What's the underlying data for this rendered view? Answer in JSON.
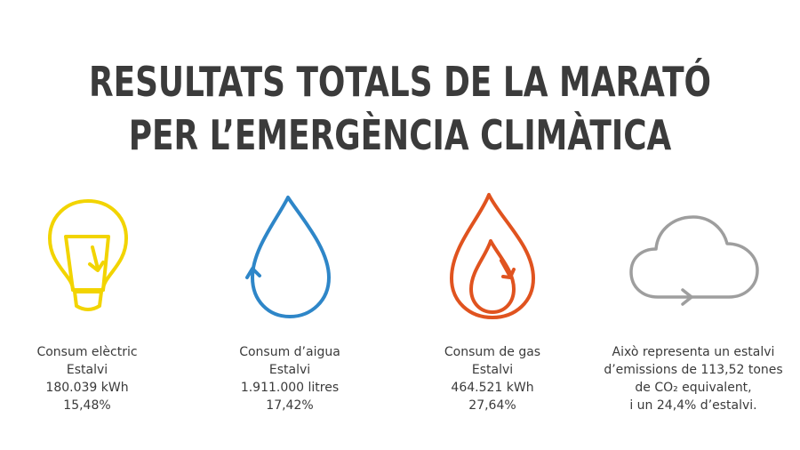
{
  "title": {
    "line1": "RESULTATS TOTALS DE LA MARATÓ",
    "line2": "PER L’EMERGÈNCIA CLIMÀTICA"
  },
  "colors": {
    "electric": "#f2d400",
    "water": "#2e86c8",
    "gas": "#e0531f",
    "cloud": "#9e9e9e",
    "text": "#3a3a3a"
  },
  "items": [
    {
      "icon": "lightbulb-icon",
      "lines": [
        "Consum elèctric",
        "Estalvi",
        "180.039 kWh",
        "15,48%"
      ]
    },
    {
      "icon": "water-drop-icon",
      "lines": [
        "Consum d’aigua",
        "Estalvi",
        "1.911.000 litres",
        "17,42%"
      ]
    },
    {
      "icon": "flame-icon",
      "lines": [
        "Consum de gas",
        "Estalvi",
        "464.521 kWh",
        "27,64%"
      ]
    },
    {
      "icon": "cloud-icon",
      "lines": [
        "Això representa un estalvi",
        "d’emissions de 113,52 tones",
        "de CO₂ equivalent,",
        "i un 24,4% d’estalvi."
      ]
    }
  ]
}
